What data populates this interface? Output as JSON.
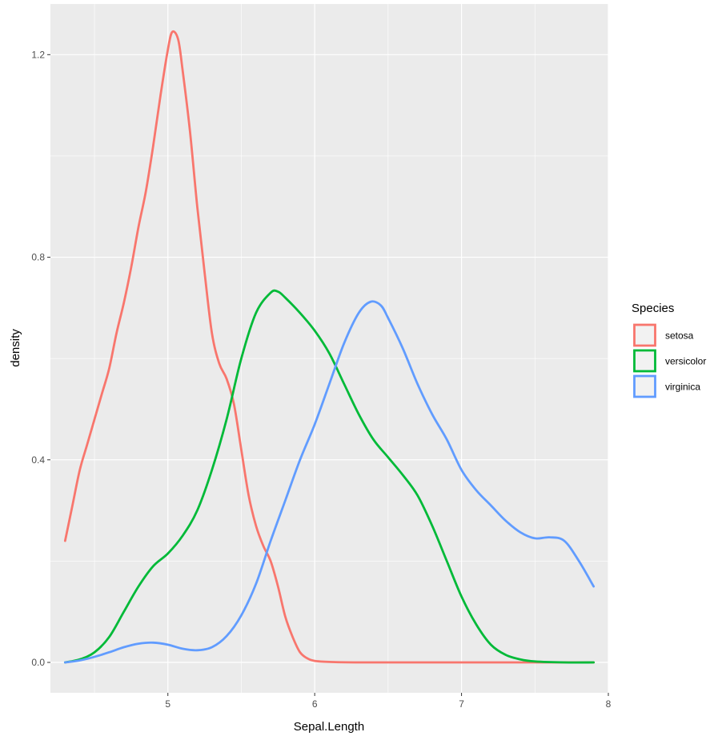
{
  "chart_data": {
    "type": "line",
    "subtype": "density",
    "title": "",
    "xlabel": "Sepal.Length",
    "ylabel": "density",
    "xlim": [
      4.2,
      8.0
    ],
    "ylim": [
      -0.06,
      1.3
    ],
    "x_ticks": [
      5,
      6,
      7,
      8
    ],
    "x_tick_labels": [
      "5",
      "6",
      "7",
      "8"
    ],
    "x_minor_ticks": [
      4.5,
      5.5,
      6.5,
      7.5
    ],
    "y_ticks": [
      0.0,
      0.4,
      0.8,
      1.2
    ],
    "y_tick_labels": [
      "0.0",
      "0.4",
      "0.8",
      "1.2"
    ],
    "y_minor_ticks": [
      0.2,
      0.6,
      1.0
    ],
    "grid": true,
    "legend": {
      "title": "Species",
      "position": "right"
    },
    "series": [
      {
        "name": "setosa",
        "color": "#F8766D",
        "points": [
          [
            4.3,
            0.24
          ],
          [
            4.35,
            0.31
          ],
          [
            4.4,
            0.38
          ],
          [
            4.45,
            0.43
          ],
          [
            4.5,
            0.48
          ],
          [
            4.55,
            0.53
          ],
          [
            4.6,
            0.58
          ],
          [
            4.65,
            0.65
          ],
          [
            4.7,
            0.71
          ],
          [
            4.75,
            0.78
          ],
          [
            4.8,
            0.86
          ],
          [
            4.85,
            0.93
          ],
          [
            4.9,
            1.02
          ],
          [
            4.95,
            1.12
          ],
          [
            5.0,
            1.21
          ],
          [
            5.03,
            1.245
          ],
          [
            5.07,
            1.23
          ],
          [
            5.1,
            1.17
          ],
          [
            5.15,
            1.05
          ],
          [
            5.2,
            0.9
          ],
          [
            5.25,
            0.77
          ],
          [
            5.3,
            0.65
          ],
          [
            5.35,
            0.59
          ],
          [
            5.4,
            0.56
          ],
          [
            5.45,
            0.51
          ],
          [
            5.5,
            0.42
          ],
          [
            5.55,
            0.33
          ],
          [
            5.6,
            0.27
          ],
          [
            5.65,
            0.23
          ],
          [
            5.7,
            0.2
          ],
          [
            5.75,
            0.15
          ],
          [
            5.8,
            0.09
          ],
          [
            5.85,
            0.05
          ],
          [
            5.9,
            0.02
          ],
          [
            5.95,
            0.008
          ],
          [
            6.0,
            0.003
          ],
          [
            6.1,
            0.001
          ],
          [
            6.3,
            0.0
          ],
          [
            6.6,
            0.0
          ],
          [
            7.0,
            0.0
          ],
          [
            7.4,
            0.0
          ],
          [
            7.9,
            0.0
          ]
        ]
      },
      {
        "name": "versicolor",
        "color": "#00BA38",
        "points": [
          [
            4.3,
            0.0
          ],
          [
            4.4,
            0.006
          ],
          [
            4.5,
            0.02
          ],
          [
            4.6,
            0.05
          ],
          [
            4.7,
            0.1
          ],
          [
            4.8,
            0.15
          ],
          [
            4.9,
            0.19
          ],
          [
            5.0,
            0.215
          ],
          [
            5.1,
            0.25
          ],
          [
            5.2,
            0.3
          ],
          [
            5.3,
            0.38
          ],
          [
            5.4,
            0.48
          ],
          [
            5.5,
            0.6
          ],
          [
            5.6,
            0.69
          ],
          [
            5.7,
            0.73
          ],
          [
            5.75,
            0.732
          ],
          [
            5.8,
            0.72
          ],
          [
            5.9,
            0.69
          ],
          [
            6.0,
            0.655
          ],
          [
            6.1,
            0.61
          ],
          [
            6.2,
            0.55
          ],
          [
            6.3,
            0.49
          ],
          [
            6.4,
            0.44
          ],
          [
            6.5,
            0.405
          ],
          [
            6.6,
            0.37
          ],
          [
            6.7,
            0.33
          ],
          [
            6.8,
            0.27
          ],
          [
            6.9,
            0.2
          ],
          [
            7.0,
            0.13
          ],
          [
            7.1,
            0.075
          ],
          [
            7.2,
            0.035
          ],
          [
            7.3,
            0.015
          ],
          [
            7.4,
            0.006
          ],
          [
            7.5,
            0.002
          ],
          [
            7.7,
            0.0
          ],
          [
            7.9,
            0.0
          ]
        ]
      },
      {
        "name": "virginica",
        "color": "#619CFF",
        "points": [
          [
            4.3,
            0.0
          ],
          [
            4.4,
            0.004
          ],
          [
            4.5,
            0.011
          ],
          [
            4.6,
            0.02
          ],
          [
            4.7,
            0.03
          ],
          [
            4.8,
            0.037
          ],
          [
            4.9,
            0.039
          ],
          [
            5.0,
            0.035
          ],
          [
            5.1,
            0.027
          ],
          [
            5.2,
            0.024
          ],
          [
            5.3,
            0.03
          ],
          [
            5.4,
            0.052
          ],
          [
            5.5,
            0.093
          ],
          [
            5.6,
            0.155
          ],
          [
            5.7,
            0.24
          ],
          [
            5.8,
            0.32
          ],
          [
            5.9,
            0.4
          ],
          [
            6.0,
            0.47
          ],
          [
            6.1,
            0.55
          ],
          [
            6.2,
            0.63
          ],
          [
            6.3,
            0.69
          ],
          [
            6.38,
            0.712
          ],
          [
            6.45,
            0.705
          ],
          [
            6.5,
            0.68
          ],
          [
            6.6,
            0.62
          ],
          [
            6.7,
            0.55
          ],
          [
            6.8,
            0.49
          ],
          [
            6.9,
            0.44
          ],
          [
            7.0,
            0.38
          ],
          [
            7.1,
            0.34
          ],
          [
            7.2,
            0.31
          ],
          [
            7.3,
            0.28
          ],
          [
            7.4,
            0.257
          ],
          [
            7.5,
            0.245
          ],
          [
            7.6,
            0.247
          ],
          [
            7.7,
            0.24
          ],
          [
            7.8,
            0.2
          ],
          [
            7.9,
            0.15
          ]
        ]
      }
    ]
  }
}
